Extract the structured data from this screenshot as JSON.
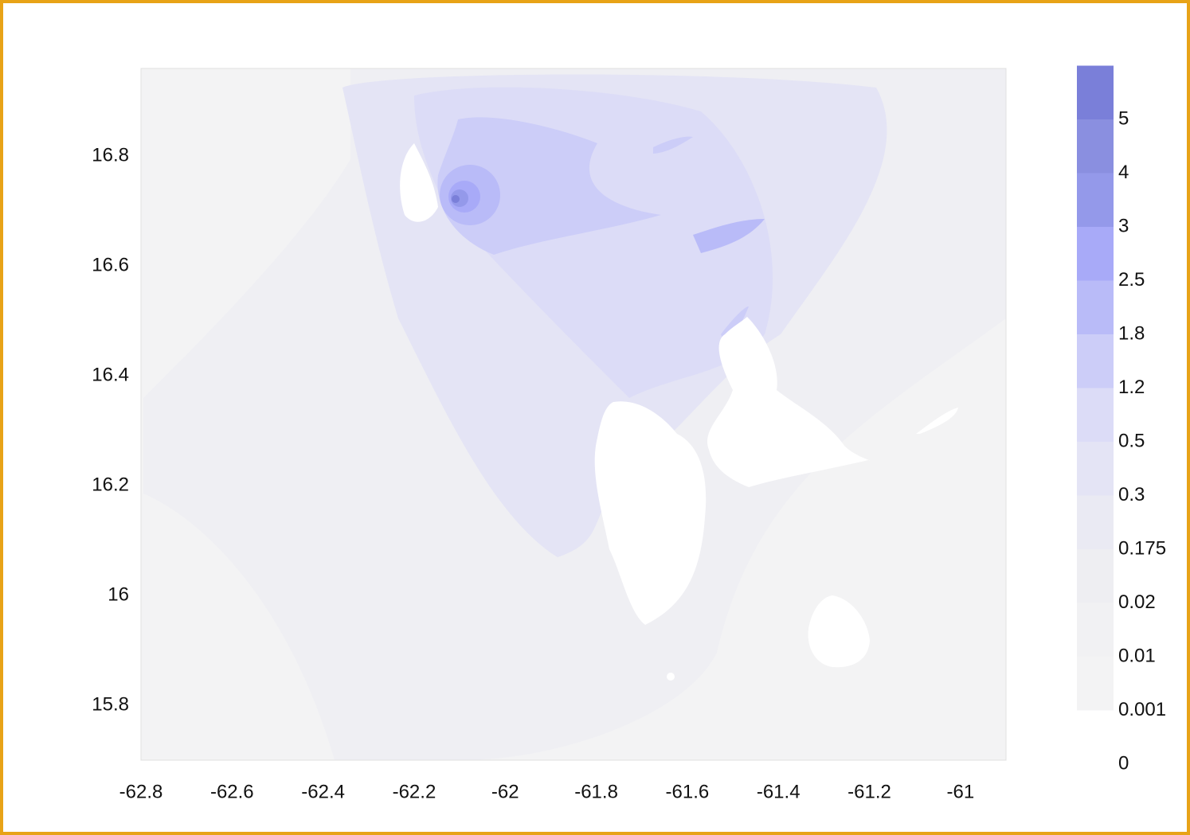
{
  "chart_data": {
    "type": "contour-map",
    "xlim": [
      -62.8,
      -60.9
    ],
    "ylim": [
      15.7,
      16.96
    ],
    "xticks": [
      -62.8,
      -62.6,
      -62.4,
      -62.2,
      -62,
      -61.8,
      -61.6,
      -61.4,
      -61.2,
      -61
    ],
    "yticks": [
      15.8,
      16,
      16.2,
      16.4,
      16.6,
      16.8
    ],
    "colorbar": {
      "levels": [
        0,
        0.001,
        0.01,
        0.02,
        0.175,
        0.3,
        0.5,
        1.2,
        1.8,
        2.5,
        3,
        4,
        5
      ],
      "colors": [
        "#ffffff",
        "#f3f3f4",
        "#f1f1f3",
        "#eeeef2",
        "#eaeaf3",
        "#e4e4f5",
        "#dcdcf7",
        "#cccdf8",
        "#b9bbf8",
        "#a8aaf8",
        "#9499ea",
        "#8a8fe0",
        "#7a7fd9"
      ]
    }
  }
}
